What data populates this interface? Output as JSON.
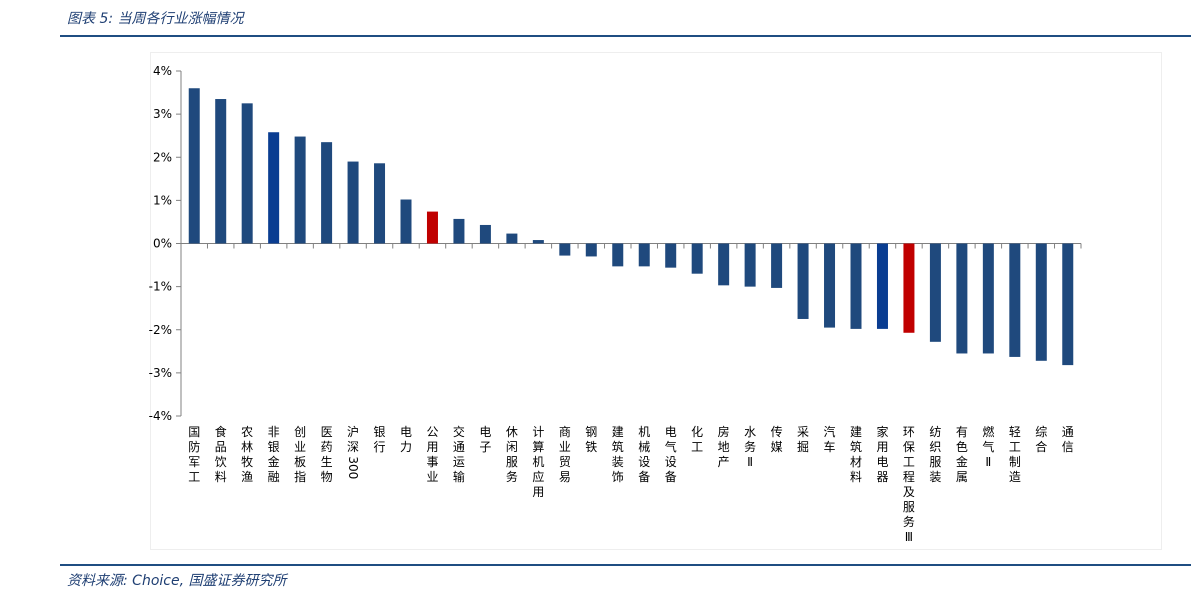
{
  "header": {
    "title": "图表 5:  当周各行业涨幅情况"
  },
  "footer": {
    "source": "资料来源:  Choice, 国盛证券研究所"
  },
  "colors": {
    "default_bar": "#1f497d",
    "highlight_blue": "#0a3d91",
    "highlight_red": "#c00000",
    "rule": "#1f4e82",
    "text": "#1f3f73"
  },
  "chart_data": {
    "type": "bar",
    "title": "",
    "xlabel": "",
    "ylabel": "",
    "ylim": [
      -4,
      4
    ],
    "yticks": [
      4,
      3,
      2,
      1,
      0,
      -1,
      -2,
      -3,
      -4
    ],
    "ytick_labels": [
      "4%",
      "3%",
      "2%",
      "1%",
      "0%",
      "-1%",
      "-2%",
      "-3%",
      "-4%"
    ],
    "grid": false,
    "legend": "none",
    "unit": "%",
    "categories": [
      "国防军工",
      "食品饮料",
      "农林牧渔",
      "非银金融",
      "创业板指",
      "医药生物",
      "沪深300",
      "银行",
      "电力",
      "公用事业",
      "交通运输",
      "电子",
      "休闲服务",
      "计算机应用",
      "商业贸易",
      "钢铁",
      "建筑装饰",
      "机械设备",
      "电气设备",
      "化工",
      "房地产",
      "水务Ⅱ",
      "传媒",
      "采掘",
      "汽车",
      "建筑材料",
      "家用电器",
      "环保工程及服务Ⅲ",
      "纺织服装",
      "有色金属",
      "燃气Ⅱ",
      "轻工制造",
      "综合",
      "通信"
    ],
    "values": [
      3.6,
      3.35,
      3.25,
      2.58,
      2.48,
      2.35,
      1.9,
      1.86,
      1.02,
      0.74,
      0.57,
      0.43,
      0.23,
      0.08,
      -0.28,
      -0.3,
      -0.53,
      -0.53,
      -0.56,
      -0.7,
      -0.97,
      -1.0,
      -1.03,
      -1.75,
      -1.95,
      -1.98,
      -1.98,
      -2.07,
      -2.28,
      -2.55,
      -2.55,
      -2.63,
      -2.72,
      -2.82
    ],
    "highlight_blue": [
      "非银金融",
      "家用电器"
    ],
    "highlight_red": [
      "公用事业",
      "环保工程及服务Ⅲ"
    ]
  }
}
